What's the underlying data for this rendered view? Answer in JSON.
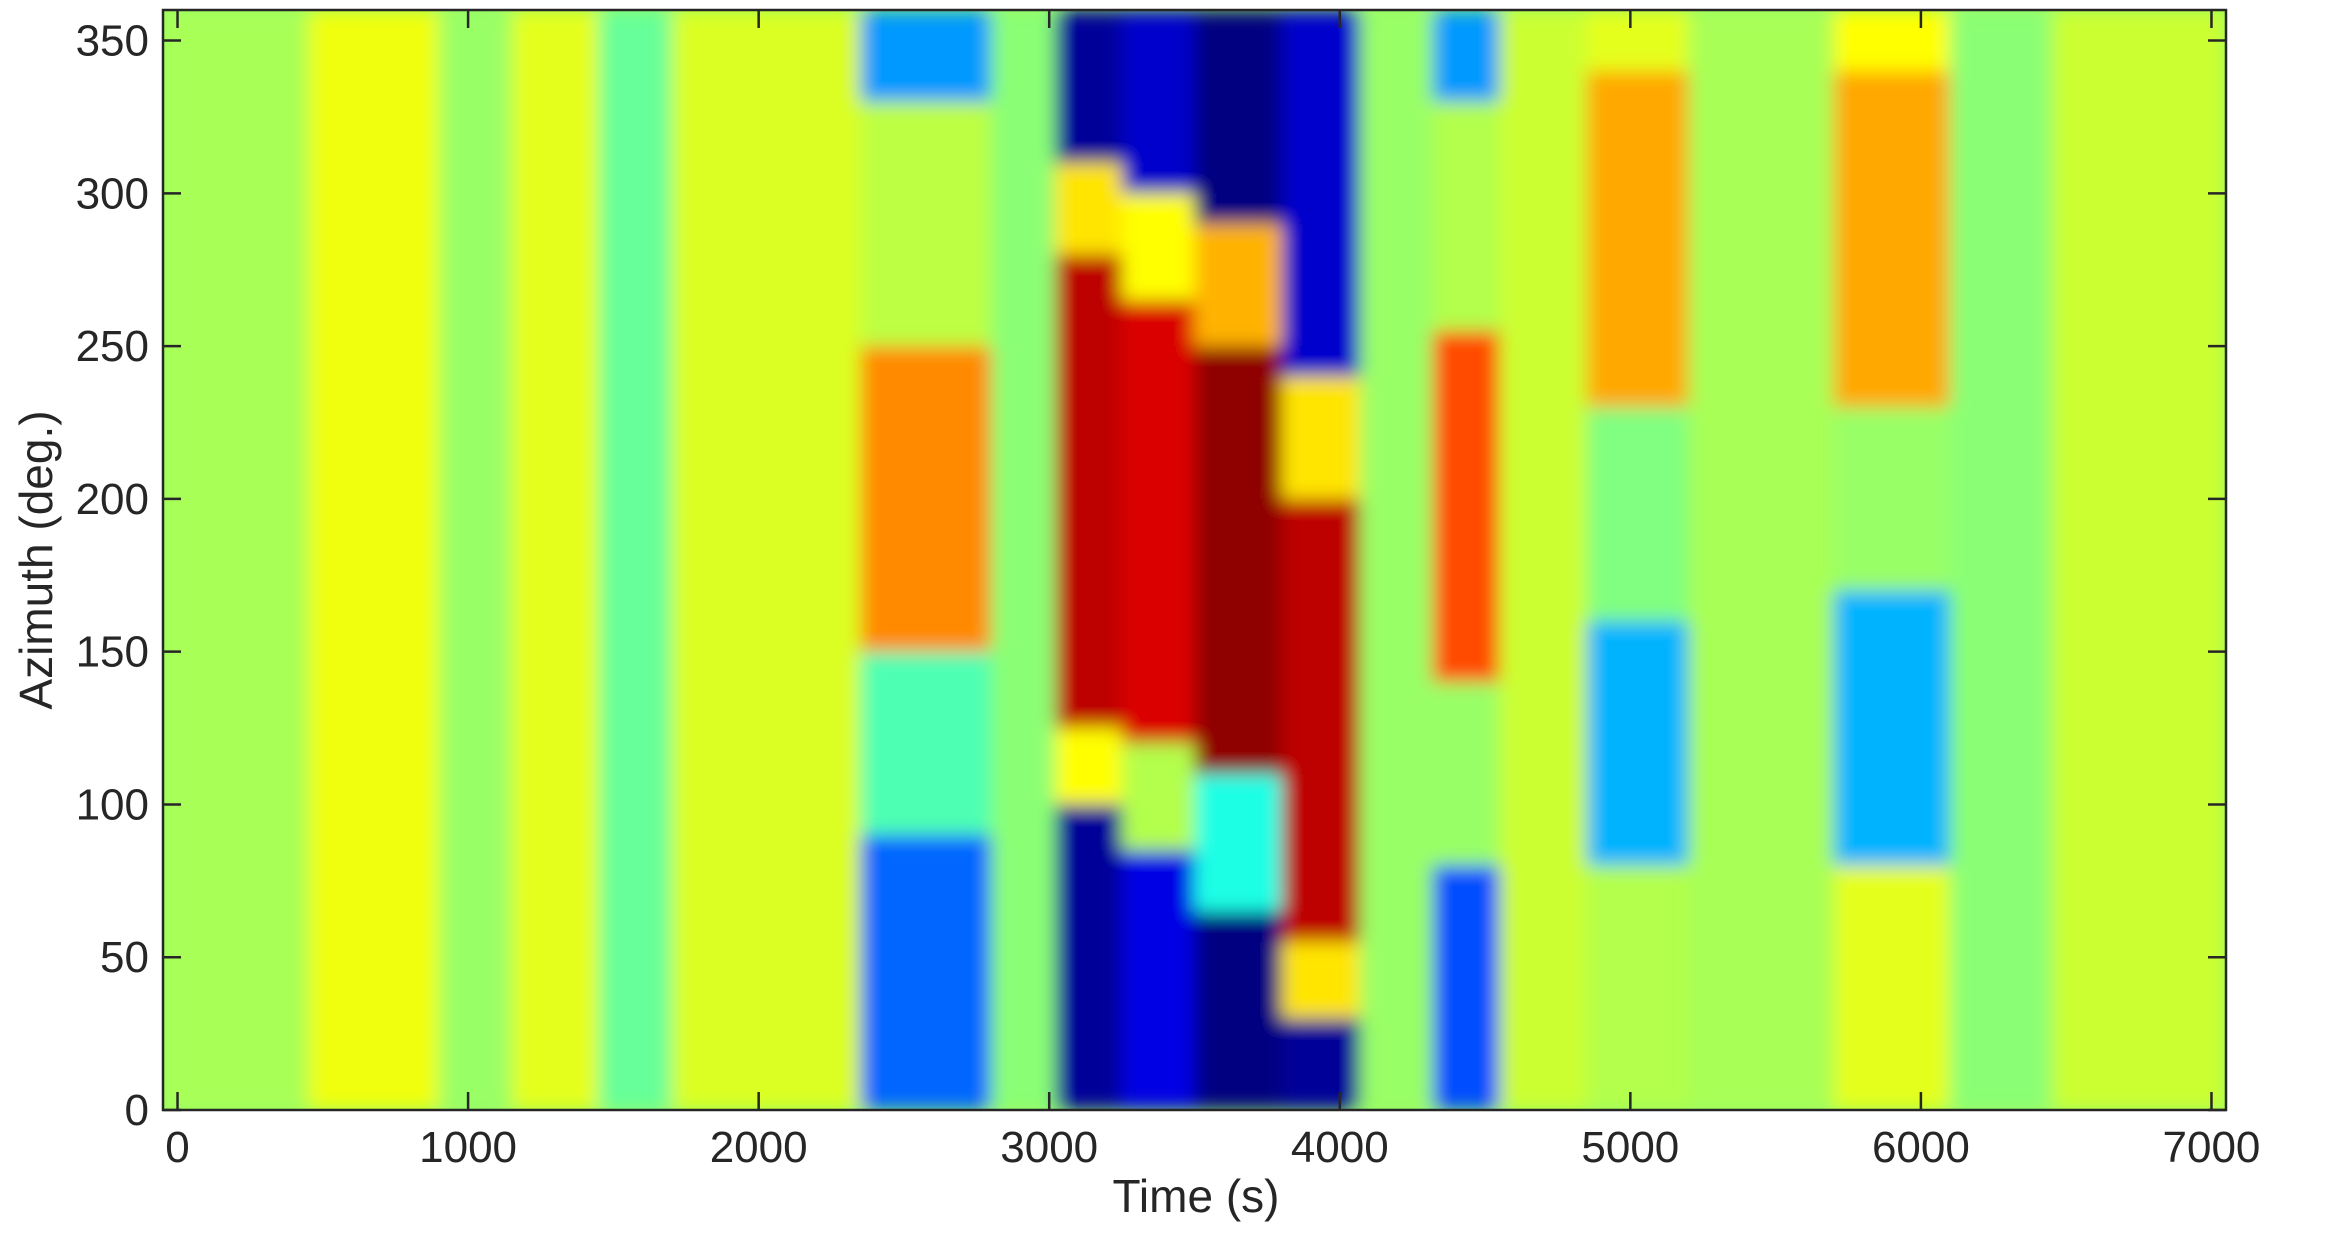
{
  "chart_data": {
    "type": "heatmap",
    "title": "",
    "xlabel": "Time (s)",
    "ylabel": "Azimuth (deg.)",
    "xlim": [
      -50,
      7050
    ],
    "ylim": [
      0,
      360
    ],
    "x_ticks": [
      0,
      1000,
      2000,
      3000,
      4000,
      5000,
      6000,
      7000
    ],
    "y_ticks": [
      0,
      50,
      100,
      150,
      200,
      250,
      300,
      350
    ],
    "colormap": "jet",
    "value_range": [
      -1,
      1
    ],
    "grid": false,
    "cells": [
      {
        "x_range": [
          -50,
          500
        ],
        "y_range": [
          0,
          360
        ],
        "value": 0.08
      },
      {
        "x_range": [
          450,
          900
        ],
        "y_range": [
          0,
          360
        ],
        "value": 0.22
      },
      {
        "x_range": [
          900,
          1150
        ],
        "y_range": [
          0,
          360
        ],
        "value": 0.05
      },
      {
        "x_range": [
          1150,
          1450
        ],
        "y_range": [
          0,
          360
        ],
        "value": 0.2
      },
      {
        "x_range": [
          1450,
          1700
        ],
        "y_range": [
          0,
          360
        ],
        "value": -0.05
      },
      {
        "x_range": [
          1700,
          2350
        ],
        "y_range": [
          0,
          360
        ],
        "value": 0.18
      },
      {
        "x_range": [
          2350,
          2800
        ],
        "y_range": [
          0,
          90
        ],
        "value": -0.55
      },
      {
        "x_range": [
          2350,
          2800
        ],
        "y_range": [
          90,
          150
        ],
        "value": -0.1
      },
      {
        "x_range": [
          2350,
          2800
        ],
        "y_range": [
          150,
          250
        ],
        "value": 0.48
      },
      {
        "x_range": [
          2350,
          2800
        ],
        "y_range": [
          250,
          330
        ],
        "value": 0.12
      },
      {
        "x_range": [
          2350,
          2800
        ],
        "y_range": [
          330,
          360
        ],
        "value": -0.45
      },
      {
        "x_range": [
          2800,
          3020
        ],
        "y_range": [
          0,
          360
        ],
        "value": 0.02
      },
      {
        "x_range": [
          3020,
          3250
        ],
        "y_range": [
          0,
          100
        ],
        "value": -0.95
      },
      {
        "x_range": [
          3020,
          3250
        ],
        "y_range": [
          100,
          125
        ],
        "value": 0.25
      },
      {
        "x_range": [
          3020,
          3250
        ],
        "y_range": [
          125,
          280
        ],
        "value": 0.88
      },
      {
        "x_range": [
          3020,
          3250
        ],
        "y_range": [
          280,
          310
        ],
        "value": 0.3
      },
      {
        "x_range": [
          3020,
          3250
        ],
        "y_range": [
          310,
          360
        ],
        "value": -0.95
      },
      {
        "x_range": [
          3250,
          3500
        ],
        "y_range": [
          0,
          85
        ],
        "value": -0.8
      },
      {
        "x_range": [
          3250,
          3500
        ],
        "y_range": [
          85,
          120
        ],
        "value": 0.1
      },
      {
        "x_range": [
          3250,
          3500
        ],
        "y_range": [
          120,
          265
        ],
        "value": 0.82
      },
      {
        "x_range": [
          3250,
          3500
        ],
        "y_range": [
          265,
          300
        ],
        "value": 0.25
      },
      {
        "x_range": [
          3250,
          3500
        ],
        "y_range": [
          300,
          360
        ],
        "value": -0.85
      },
      {
        "x_range": [
          3500,
          3800
        ],
        "y_range": [
          0,
          65
        ],
        "value": -1.0
      },
      {
        "x_range": [
          3500,
          3800
        ],
        "y_range": [
          65,
          110
        ],
        "value": -0.2
      },
      {
        "x_range": [
          3500,
          3800
        ],
        "y_range": [
          110,
          250
        ],
        "value": 0.97
      },
      {
        "x_range": [
          3500,
          3800
        ],
        "y_range": [
          250,
          290
        ],
        "value": 0.4
      },
      {
        "x_range": [
          3500,
          3800
        ],
        "y_range": [
          290,
          360
        ],
        "value": -1.0
      },
      {
        "x_range": [
          3800,
          4070
        ],
        "y_range": [
          0,
          30
        ],
        "value": -0.95
      },
      {
        "x_range": [
          3800,
          4070
        ],
        "y_range": [
          30,
          55
        ],
        "value": 0.3
      },
      {
        "x_range": [
          3800,
          4070
        ],
        "y_range": [
          55,
          200
        ],
        "value": 0.88
      },
      {
        "x_range": [
          3800,
          4070
        ],
        "y_range": [
          200,
          240
        ],
        "value": 0.3
      },
      {
        "x_range": [
          3800,
          4070
        ],
        "y_range": [
          240,
          360
        ],
        "value": -0.85
      },
      {
        "x_range": [
          4070,
          4320
        ],
        "y_range": [
          0,
          360
        ],
        "value": 0.05
      },
      {
        "x_range": [
          4320,
          4550
        ],
        "y_range": [
          0,
          80
        ],
        "value": -0.6
      },
      {
        "x_range": [
          4320,
          4550
        ],
        "y_range": [
          80,
          140
        ],
        "value": 0.05
      },
      {
        "x_range": [
          4320,
          4550
        ],
        "y_range": [
          140,
          255
        ],
        "value": 0.6
      },
      {
        "x_range": [
          4320,
          4550
        ],
        "y_range": [
          255,
          330
        ],
        "value": 0.1
      },
      {
        "x_range": [
          4320,
          4550
        ],
        "y_range": [
          330,
          360
        ],
        "value": -0.45
      },
      {
        "x_range": [
          4550,
          4850
        ],
        "y_range": [
          0,
          360
        ],
        "value": 0.15
      },
      {
        "x_range": [
          4850,
          5200
        ],
        "y_range": [
          0,
          80
        ],
        "value": 0.1
      },
      {
        "x_range": [
          4850,
          5200
        ],
        "y_range": [
          80,
          160
        ],
        "value": -0.4
      },
      {
        "x_range": [
          4850,
          5200
        ],
        "y_range": [
          160,
          230
        ],
        "value": 0.0
      },
      {
        "x_range": [
          4850,
          5200
        ],
        "y_range": [
          230,
          340
        ],
        "value": 0.42
      },
      {
        "x_range": [
          4850,
          5200
        ],
        "y_range": [
          340,
          360
        ],
        "value": 0.2
      },
      {
        "x_range": [
          5200,
          5700
        ],
        "y_range": [
          0,
          360
        ],
        "value": 0.08
      },
      {
        "x_range": [
          5700,
          6100
        ],
        "y_range": [
          0,
          80
        ],
        "value": 0.2
      },
      {
        "x_range": [
          5700,
          6100
        ],
        "y_range": [
          80,
          170
        ],
        "value": -0.4
      },
      {
        "x_range": [
          5700,
          6100
        ],
        "y_range": [
          170,
          230
        ],
        "value": 0.05
      },
      {
        "x_range": [
          5700,
          6100
        ],
        "y_range": [
          230,
          340
        ],
        "value": 0.42
      },
      {
        "x_range": [
          5700,
          6100
        ],
        "y_range": [
          340,
          360
        ],
        "value": 0.25
      },
      {
        "x_range": [
          6100,
          6450
        ],
        "y_range": [
          0,
          360
        ],
        "value": 0.02
      },
      {
        "x_range": [
          6450,
          7050
        ],
        "y_range": [
          0,
          360
        ],
        "value": 0.15
      }
    ]
  }
}
